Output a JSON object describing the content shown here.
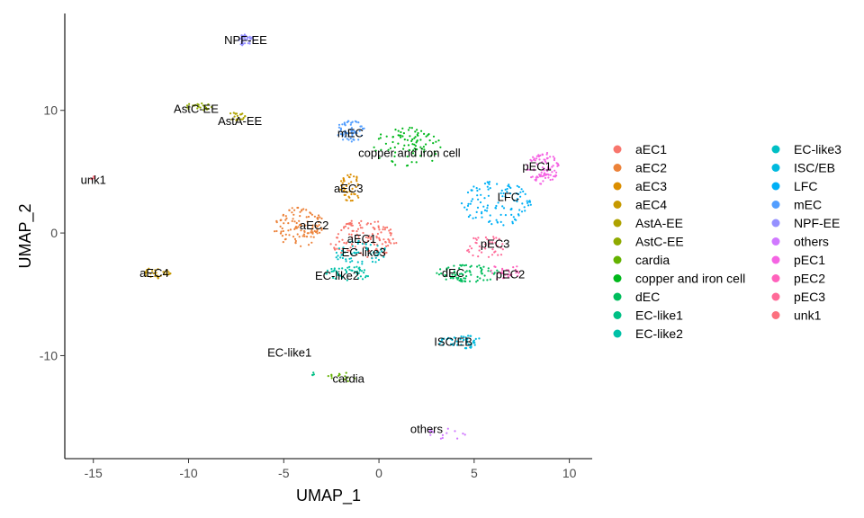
{
  "chart_data": {
    "type": "scatter",
    "title": "",
    "xlabel": "UMAP_1",
    "ylabel": "UMAP_2",
    "xlim": [
      -16.5,
      11.2
    ],
    "ylim": [
      -18.4,
      17.9
    ],
    "x_ticks": [
      "-15",
      "-10",
      "-5",
      "0",
      "5",
      "10"
    ],
    "y_ticks": [
      "-10",
      "0",
      "10"
    ],
    "grid": false,
    "legend_position": "right",
    "legend_columns": 2,
    "series": [
      {
        "name": "aEC1",
        "color": "#F8766D"
      },
      {
        "name": "aEC2",
        "color": "#EC8239"
      },
      {
        "name": "aEC3",
        "color": "#DB8E00"
      },
      {
        "name": "aEC4",
        "color": "#C69900"
      },
      {
        "name": "AstA-EE",
        "color": "#AEA200"
      },
      {
        "name": "AstC-EE",
        "color": "#8FAA00"
      },
      {
        "name": "cardia",
        "color": "#64B200"
      },
      {
        "name": "copper and iron cell",
        "color": "#00B81B"
      },
      {
        "name": "dEC",
        "color": "#00BD5C"
      },
      {
        "name": "EC-like1",
        "color": "#00C085"
      },
      {
        "name": "EC-like2",
        "color": "#00C1A7"
      },
      {
        "name": "EC-like3",
        "color": "#00BFC4"
      },
      {
        "name": "ISC/EB",
        "color": "#00BADE"
      },
      {
        "name": "LFC",
        "color": "#00B0F6"
      },
      {
        "name": "mEC",
        "color": "#529EFF"
      },
      {
        "name": "NPF-EE",
        "color": "#9590FF"
      },
      {
        "name": "others",
        "color": "#D078FF"
      },
      {
        "name": "pEC1",
        "color": "#F564E3"
      },
      {
        "name": "pEC2",
        "color": "#FF62BC"
      },
      {
        "name": "pEC3",
        "color": "#FF6A98"
      },
      {
        "name": "unk1",
        "color": "#FC717F"
      }
    ],
    "cluster_centers": [
      {
        "name": "NPF-EE",
        "x": -7.0,
        "y": 15.7,
        "color": "#9590FF"
      },
      {
        "name": "AstC-EE",
        "x": -9.5,
        "y": 10.3,
        "color": "#8FAA00"
      },
      {
        "name": "AstA-EE",
        "x": -7.5,
        "y": 9.5,
        "color": "#AEA200"
      },
      {
        "name": "unk1",
        "x": -15.0,
        "y": 4.4,
        "color": "#FC717F"
      },
      {
        "name": "mEC",
        "x": -1.5,
        "y": 8.3,
        "color": "#529EFF"
      },
      {
        "name": "copper and iron cell",
        "x": 1.5,
        "y": 7.0,
        "color": "#00B81B"
      },
      {
        "name": "aEC3",
        "x": -1.5,
        "y": 3.6,
        "color": "#DB8E00"
      },
      {
        "name": "aEC2",
        "x": -4.2,
        "y": 0.5,
        "color": "#EC8239"
      },
      {
        "name": "aEC1",
        "x": -0.8,
        "y": -0.5,
        "color": "#F8766D"
      },
      {
        "name": "EC-like3",
        "x": -1.0,
        "y": -1.6,
        "color": "#00BFC4"
      },
      {
        "name": "EC-like2",
        "x": -1.6,
        "y": -3.3,
        "color": "#00C1A7"
      },
      {
        "name": "aEC4",
        "x": -11.8,
        "y": -3.3,
        "color": "#C69900"
      },
      {
        "name": "pEC1",
        "x": 8.6,
        "y": 5.3,
        "color": "#F564E3"
      },
      {
        "name": "LFC",
        "x": 6.2,
        "y": 2.4,
        "color": "#00B0F6"
      },
      {
        "name": "pEC3",
        "x": 5.6,
        "y": -1.2,
        "color": "#FF6A98"
      },
      {
        "name": "dEC",
        "x": 4.7,
        "y": -3.3,
        "color": "#00BD5C"
      },
      {
        "name": "pEC2",
        "x": 6.7,
        "y": -3.2,
        "color": "#FF62BC"
      },
      {
        "name": "ISC/EB",
        "x": 4.3,
        "y": -8.9,
        "color": "#00BADE"
      },
      {
        "name": "EC-like1",
        "x": -3.5,
        "y": -11.5,
        "color": "#00C085"
      },
      {
        "name": "cardia",
        "x": -2.0,
        "y": -11.8,
        "color": "#64B200"
      },
      {
        "name": "others",
        "x": 3.5,
        "y": -16.3,
        "color": "#D078FF"
      }
    ],
    "annotations": [
      {
        "text": "NPF-EE",
        "x": -7.0,
        "y": 15.7
      },
      {
        "text": "AstC-EE",
        "x": -9.6,
        "y": 10.1
      },
      {
        "text": "AstA-EE",
        "x": -7.3,
        "y": 9.1
      },
      {
        "text": "unk1",
        "x": -15.0,
        "y": 4.3
      },
      {
        "text": "mEC",
        "x": -1.5,
        "y": 8.1
      },
      {
        "text": "copper and iron cell",
        "x": 1.6,
        "y": 6.5
      },
      {
        "text": "aEC3",
        "x": -1.6,
        "y": 3.6
      },
      {
        "text": "aEC2",
        "x": -3.4,
        "y": 0.6
      },
      {
        "text": "aEC1",
        "x": -0.9,
        "y": -0.5
      },
      {
        "text": "EC-like3",
        "x": -0.8,
        "y": -1.6
      },
      {
        "text": "EC-like2",
        "x": -2.2,
        "y": -3.5
      },
      {
        "text": "aEC4",
        "x": -11.8,
        "y": -3.3
      },
      {
        "text": "pEC1",
        "x": 8.3,
        "y": 5.4
      },
      {
        "text": "LFC",
        "x": 6.8,
        "y": 2.9
      },
      {
        "text": "pEC3",
        "x": 6.1,
        "y": -0.9
      },
      {
        "text": "dEC",
        "x": 3.9,
        "y": -3.3
      },
      {
        "text": "pEC2",
        "x": 6.9,
        "y": -3.4
      },
      {
        "text": "ISC/EB",
        "x": 3.9,
        "y": -8.9
      },
      {
        "text": "EC-like1",
        "x": -4.7,
        "y": -9.8
      },
      {
        "text": "cardia",
        "x": -1.6,
        "y": -11.9
      },
      {
        "text": "others",
        "x": 2.5,
        "y": -16.0
      }
    ]
  }
}
